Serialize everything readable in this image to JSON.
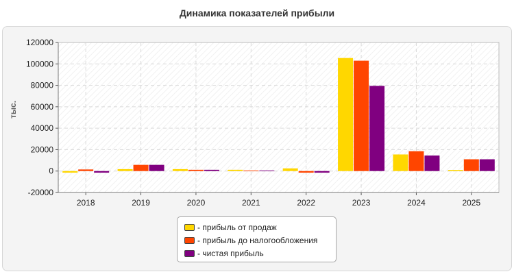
{
  "chart_data": {
    "type": "bar",
    "title": "Динамика показателей прибыли",
    "ylabel": "тыс.",
    "xlabel": "",
    "categories": [
      "2018",
      "2019",
      "2020",
      "2021",
      "2022",
      "2023",
      "2024",
      "2025"
    ],
    "ylim": [
      -20000,
      120000
    ],
    "yticks": [
      -20000,
      0,
      20000,
      40000,
      60000,
      80000,
      100000,
      120000
    ],
    "grid": true,
    "legend_position": "bottom-center",
    "series": [
      {
        "name": "- прибыль от продаж",
        "color": "#FFD700",
        "values": [
          -1500,
          1800,
          1800,
          1200,
          2500,
          105500,
          15500,
          1000
        ]
      },
      {
        "name": "- прибыль до налогообложения",
        "color": "#FF4500",
        "values": [
          1500,
          5800,
          1200,
          500,
          -1500,
          103000,
          18500,
          11000
        ]
      },
      {
        "name": "- чистая прибыль",
        "color": "#800080",
        "values": [
          -1500,
          5800,
          1200,
          500,
          -1500,
          79500,
          14500,
          11000
        ]
      }
    ]
  }
}
